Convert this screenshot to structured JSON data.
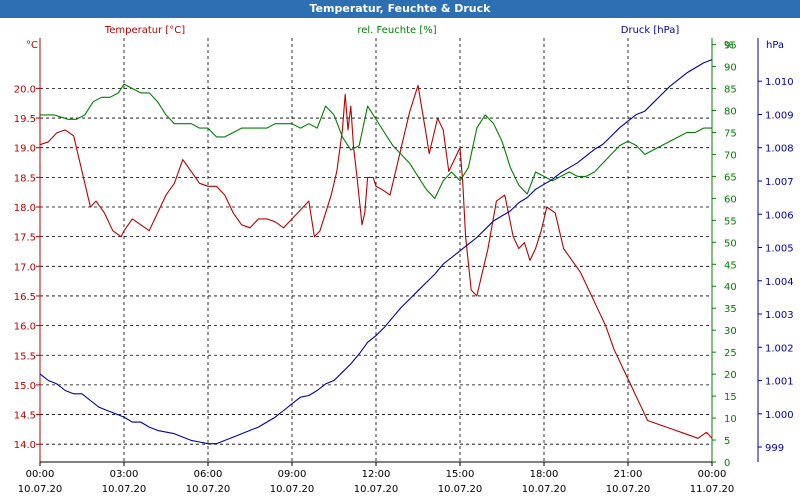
{
  "window": {
    "title": "Temperatur, Feuchte & Druck"
  },
  "colors": {
    "temperature": "#bb0000",
    "humidity": "#008000",
    "pressure": "#0000aa",
    "titlebar": "#2c6fb3",
    "grid": "#000000"
  },
  "chart_data": {
    "type": "line",
    "title": "Temperatur, Feuchte & Druck",
    "grid": true,
    "x_ticks": [
      {
        "h": 0,
        "time": "00:00",
        "date": "10.07.20"
      },
      {
        "h": 3,
        "time": "03:00",
        "date": "10.07.20"
      },
      {
        "h": 6,
        "time": "06:00",
        "date": "10.07.20"
      },
      {
        "h": 9,
        "time": "09:00",
        "date": "10.07.20"
      },
      {
        "h": 12,
        "time": "12:00",
        "date": "10.07.20"
      },
      {
        "h": 15,
        "time": "15:00",
        "date": "10.07.20"
      },
      {
        "h": 18,
        "time": "18:00",
        "date": "10.07.20"
      },
      {
        "h": 21,
        "time": "21:00",
        "date": "10.07.20"
      },
      {
        "h": 24,
        "time": "00:00",
        "date": "11.07.20"
      }
    ],
    "xlim": [
      0,
      24
    ],
    "axes": {
      "temperature": {
        "unit": "°C",
        "ylim": [
          13.7,
          20.85
        ],
        "ticks": [
          "14.0",
          "14.5",
          "15.0",
          "15.5",
          "16.0",
          "16.5",
          "17.0",
          "17.5",
          "18.0",
          "18.5",
          "19.0",
          "19.5",
          "20.0"
        ]
      },
      "humidity": {
        "unit": "%",
        "ylim": [
          0,
          96.5
        ],
        "ticks": [
          "0",
          "5",
          "10",
          "15",
          "20",
          "25",
          "30",
          "35",
          "40",
          "45",
          "50",
          "55",
          "60",
          "65",
          "70",
          "75",
          "80",
          "85",
          "90",
          "95"
        ]
      },
      "pressure": {
        "unit": "hPa",
        "ylim": [
          998.55,
          1011.3
        ],
        "ticks": [
          "999",
          "1.000",
          "1.001",
          "1.002",
          "1.003",
          "1.004",
          "1.005",
          "1.006",
          "1.007",
          "1.008",
          "1.009",
          "1.010"
        ]
      }
    },
    "series": [
      {
        "name": "Temperatur [°C]",
        "key": "temperature",
        "x": [
          0,
          0.3,
          0.6,
          0.9,
          1.2,
          1.5,
          1.8,
          2.0,
          2.3,
          2.6,
          2.9,
          3.0,
          3.3,
          3.6,
          3.9,
          4.2,
          4.5,
          4.8,
          5.1,
          5.4,
          5.7,
          6.0,
          6.3,
          6.6,
          6.9,
          7.2,
          7.5,
          7.8,
          8.1,
          8.4,
          8.7,
          9.0,
          9.3,
          9.6,
          9.8,
          10.0,
          10.2,
          10.4,
          10.6,
          10.8,
          10.9,
          11.0,
          11.1,
          11.2,
          11.3,
          11.5,
          11.6,
          11.7,
          11.9,
          12.0,
          12.2,
          12.5,
          12.8,
          13.0,
          13.2,
          13.5,
          13.8,
          13.9,
          14.0,
          14.2,
          14.4,
          14.6,
          14.8,
          15.0,
          15.1,
          15.2,
          15.4,
          15.6,
          15.8,
          16.0,
          16.3,
          16.6,
          16.9,
          17.1,
          17.3,
          17.5,
          17.7,
          17.9,
          18.1,
          18.4,
          18.7,
          19.0,
          19.3,
          19.6,
          19.9,
          20.2,
          20.5,
          20.8,
          21.1,
          21.4,
          21.7,
          22.0,
          22.3,
          22.6,
          22.9,
          23.2,
          23.5,
          23.8,
          24.0
        ],
        "y": [
          19.05,
          19.1,
          19.25,
          19.3,
          19.2,
          18.6,
          18.0,
          18.1,
          17.9,
          17.6,
          17.5,
          17.6,
          17.8,
          17.7,
          17.6,
          17.9,
          18.2,
          18.4,
          18.8,
          18.6,
          18.4,
          18.35,
          18.35,
          18.2,
          17.9,
          17.7,
          17.65,
          17.8,
          17.8,
          17.75,
          17.65,
          17.8,
          17.95,
          18.1,
          17.5,
          17.6,
          17.9,
          18.2,
          18.6,
          19.3,
          19.9,
          19.3,
          19.7,
          19.0,
          18.6,
          17.7,
          17.9,
          18.5,
          18.5,
          18.35,
          18.3,
          18.2,
          18.8,
          19.2,
          19.6,
          20.05,
          19.2,
          18.9,
          19.1,
          19.5,
          19.3,
          18.6,
          18.8,
          19.0,
          18.4,
          17.5,
          16.6,
          16.5,
          16.9,
          17.3,
          18.1,
          18.2,
          17.5,
          17.3,
          17.4,
          17.1,
          17.3,
          17.6,
          18.0,
          17.9,
          17.3,
          17.1,
          16.9,
          16.6,
          16.3,
          16.0,
          15.6,
          15.3,
          15.0,
          14.7,
          14.4,
          14.35,
          14.3,
          14.25,
          14.2,
          14.15,
          14.1,
          14.2,
          14.1
        ]
      },
      {
        "name": "rel. Feuchte [%]",
        "key": "humidity",
        "x": [
          0,
          0.5,
          1.0,
          1.3,
          1.6,
          1.9,
          2.2,
          2.5,
          2.8,
          3.0,
          3.3,
          3.6,
          3.9,
          4.2,
          4.5,
          4.8,
          5.1,
          5.4,
          5.7,
          6.0,
          6.3,
          6.6,
          6.9,
          7.2,
          7.5,
          7.8,
          8.1,
          8.4,
          8.7,
          9.0,
          9.3,
          9.6,
          9.9,
          10.2,
          10.5,
          10.8,
          11.1,
          11.4,
          11.7,
          12.0,
          12.3,
          12.6,
          12.9,
          13.2,
          13.5,
          13.8,
          14.1,
          14.4,
          14.7,
          15.0,
          15.3,
          15.6,
          15.9,
          16.2,
          16.5,
          16.8,
          17.1,
          17.4,
          17.7,
          18.0,
          18.3,
          18.6,
          18.9,
          19.2,
          19.5,
          19.8,
          20.1,
          20.4,
          20.7,
          21.0,
          21.3,
          21.6,
          21.9,
          22.2,
          22.5,
          22.8,
          23.1,
          23.4,
          23.7,
          24.0
        ],
        "y": [
          79,
          79,
          78,
          78,
          79,
          82,
          83,
          83,
          84,
          86,
          85,
          84,
          84,
          82,
          79,
          77,
          77,
          77,
          76,
          76,
          74,
          74,
          75,
          76,
          76,
          76,
          76,
          77,
          77,
          77,
          76,
          77,
          76,
          81,
          79,
          74,
          71,
          72,
          81,
          78,
          75,
          72,
          70,
          68,
          65,
          62,
          60,
          64,
          66,
          64,
          67,
          76,
          79,
          77,
          73,
          67,
          63,
          61,
          66,
          65,
          64,
          65,
          66,
          65,
          65,
          66,
          68,
          70,
          72,
          73,
          72,
          70,
          71,
          72,
          73,
          74,
          75,
          75,
          76,
          76
        ]
      },
      {
        "name": "Druck [hPa]",
        "key": "pressure",
        "x": [
          0,
          0.3,
          0.6,
          0.9,
          1.2,
          1.5,
          1.8,
          2.1,
          2.4,
          2.7,
          3.0,
          3.3,
          3.6,
          3.9,
          4.2,
          4.5,
          4.8,
          5.1,
          5.4,
          5.7,
          6.0,
          6.3,
          6.6,
          6.9,
          7.2,
          7.5,
          7.8,
          8.1,
          8.4,
          8.7,
          9.0,
          9.3,
          9.6,
          9.9,
          10.2,
          10.5,
          10.8,
          11.1,
          11.4,
          11.7,
          12.0,
          12.3,
          12.6,
          12.9,
          13.2,
          13.5,
          13.8,
          14.1,
          14.4,
          14.7,
          15.0,
          15.3,
          15.6,
          15.9,
          16.2,
          16.5,
          16.8,
          17.1,
          17.4,
          17.7,
          18.0,
          18.3,
          18.6,
          18.9,
          19.2,
          19.5,
          19.8,
          20.1,
          20.4,
          20.7,
          21.0,
          21.3,
          21.6,
          21.9,
          22.2,
          22.5,
          22.8,
          23.1,
          23.4,
          23.7,
          24.0
        ],
        "y": [
          1001.2,
          1001.0,
          1000.9,
          1000.7,
          1000.6,
          1000.6,
          1000.4,
          1000.2,
          1000.1,
          1000.0,
          999.9,
          999.75,
          999.75,
          999.6,
          999.5,
          999.45,
          999.4,
          999.3,
          999.2,
          999.15,
          999.1,
          999.1,
          999.2,
          999.3,
          999.4,
          999.5,
          999.6,
          999.75,
          999.9,
          1000.1,
          1000.3,
          1000.5,
          1000.55,
          1000.7,
          1000.9,
          1001.0,
          1001.25,
          1001.5,
          1001.8,
          1002.15,
          1002.35,
          1002.6,
          1002.9,
          1003.2,
          1003.45,
          1003.7,
          1003.95,
          1004.2,
          1004.5,
          1004.7,
          1004.9,
          1005.1,
          1005.3,
          1005.55,
          1005.8,
          1005.95,
          1006.1,
          1006.35,
          1006.5,
          1006.75,
          1006.9,
          1007.05,
          1007.25,
          1007.4,
          1007.55,
          1007.75,
          1007.95,
          1008.1,
          1008.35,
          1008.6,
          1008.8,
          1009.0,
          1009.1,
          1009.35,
          1009.6,
          1009.85,
          1010.05,
          1010.25,
          1010.4,
          1010.55,
          1010.65
        ]
      }
    ]
  }
}
